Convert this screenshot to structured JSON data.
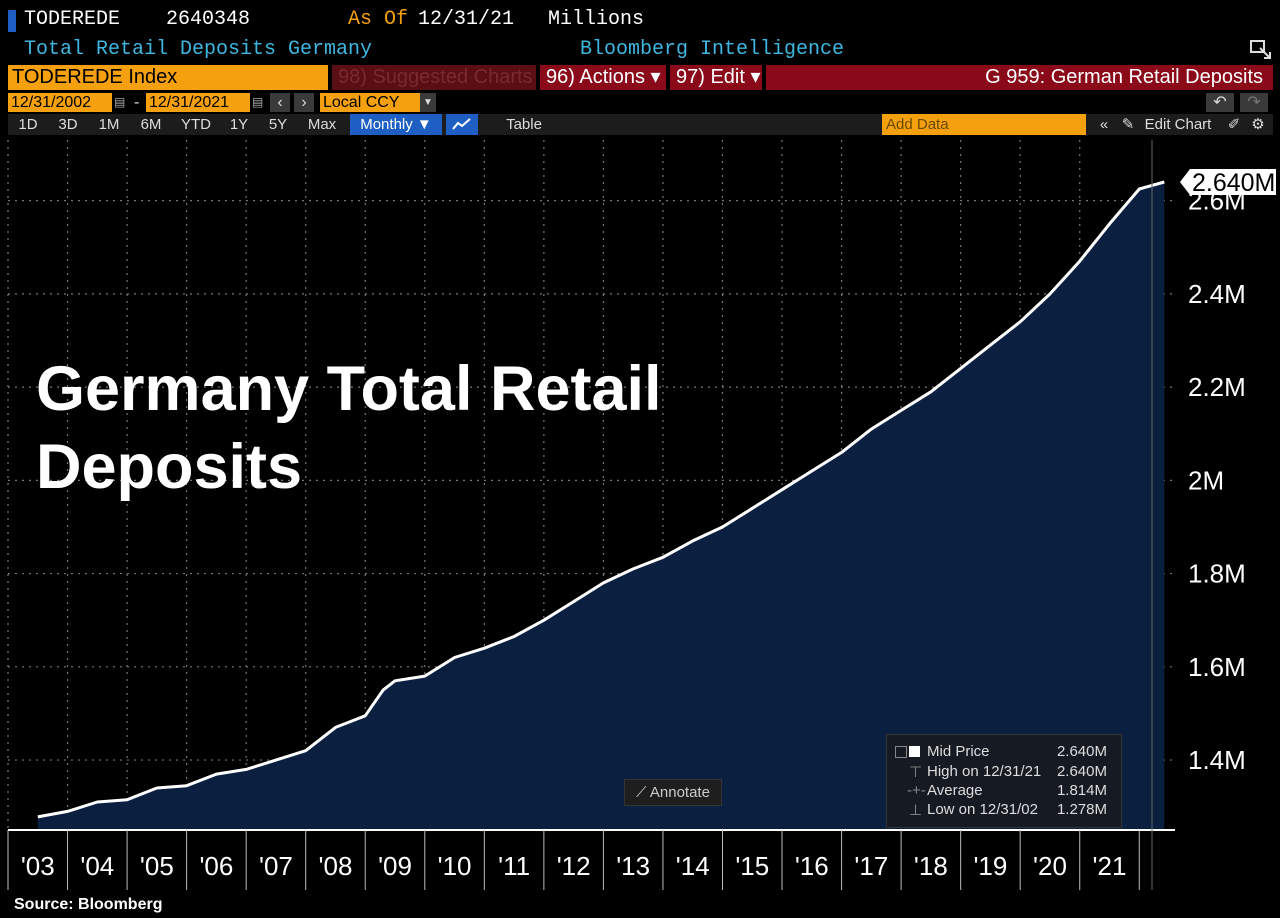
{
  "header": {
    "ticker": "TODEREDE",
    "value": "2640348",
    "as_of_label": "As Of",
    "as_of_date": "12/31/21",
    "units": "Millions",
    "description": "Total Retail Deposits Germany",
    "source_label": "Bloomberg Intelligence"
  },
  "toolbar": {
    "security": "TODEREDE Index",
    "suggested": "98) Suggested Charts",
    "actions": "96) Actions ▾",
    "edit": "97) Edit ▾",
    "chart_name": "G 959: German Retail Deposits",
    "start_date": "12/31/2002",
    "end_date": "12/31/2021",
    "currency": "Local CCY",
    "ranges": [
      "1D",
      "3D",
      "1M",
      "6M",
      "YTD",
      "1Y",
      "5Y",
      "Max"
    ],
    "frequency": "Monthly ▼",
    "table": "Table",
    "add_data_placeholder": "Add Data",
    "edit_chart": "Edit Chart"
  },
  "overlay_title": "Germany Total Retail Deposits",
  "last_value_tag": "2.640M",
  "legend": {
    "rows": [
      {
        "label": "Mid Price",
        "value": "2.640M"
      },
      {
        "label": "High on 12/31/21",
        "value": "2.640M"
      },
      {
        "label": "Average",
        "value": "1.814M"
      },
      {
        "label": "Low on 12/31/02",
        "value": "1.278M"
      }
    ]
  },
  "annotate_label": "Annotate",
  "source": "Source: Bloomberg",
  "colors": {
    "line": "#ffffff",
    "area": "#0b2040",
    "axis_text": "#ffffff",
    "orange": "#f5a00f",
    "red": "#8a0a1a"
  },
  "chart_data": {
    "type": "area",
    "title": "Germany Total Retail Deposits",
    "series": [
      {
        "name": "TODEREDE Index",
        "x": [
          2003.0,
          2003.5,
          2004.0,
          2004.5,
          2005.0,
          2005.5,
          2006.0,
          2006.5,
          2007.0,
          2007.5,
          2008.0,
          2008.4,
          2008.5,
          2008.8,
          2009.0,
          2009.5,
          2010.0,
          2010.5,
          2011.0,
          2011.5,
          2012.0,
          2012.5,
          2013.0,
          2013.5,
          2014.0,
          2014.5,
          2015.0,
          2015.5,
          2016.0,
          2016.5,
          2017.0,
          2017.5,
          2018.0,
          2018.5,
          2019.0,
          2019.5,
          2020.0,
          2020.5,
          2021.0,
          2021.5,
          2021.92
        ],
        "y": [
          1.278,
          1.29,
          1.31,
          1.315,
          1.34,
          1.345,
          1.37,
          1.38,
          1.4,
          1.42,
          1.47,
          1.49,
          1.495,
          1.55,
          1.57,
          1.58,
          1.62,
          1.64,
          1.665,
          1.7,
          1.74,
          1.78,
          1.81,
          1.835,
          1.87,
          1.9,
          1.94,
          1.98,
          2.02,
          2.06,
          2.11,
          2.15,
          2.19,
          2.24,
          2.29,
          2.34,
          2.4,
          2.47,
          2.55,
          2.625,
          2.64
        ]
      }
    ],
    "ylim": [
      1.25,
      2.73
    ],
    "xlim": [
      2002.5,
      2022.1
    ],
    "y_ticks": [
      "1.4M",
      "1.6M",
      "1.8M",
      "2M",
      "2.2M",
      "2.4M",
      "2.6M"
    ],
    "y_tick_values": [
      1.4,
      1.6,
      1.8,
      2.0,
      2.2,
      2.4,
      2.6
    ],
    "x_ticks": [
      "'03",
      "'04",
      "'05",
      "'06",
      "'07",
      "'08",
      "'09",
      "'10",
      "'11",
      "'12",
      "'13",
      "'14",
      "'15",
      "'16",
      "'17",
      "'18",
      "'19",
      "'20",
      "'21"
    ],
    "x_tick_values": [
      2003,
      2004,
      2005,
      2006,
      2007,
      2008,
      2009,
      2010,
      2011,
      2012,
      2013,
      2014,
      2015,
      2016,
      2017,
      2018,
      2019,
      2020,
      2021
    ],
    "grid": true,
    "legend_position": "bottom-right"
  }
}
